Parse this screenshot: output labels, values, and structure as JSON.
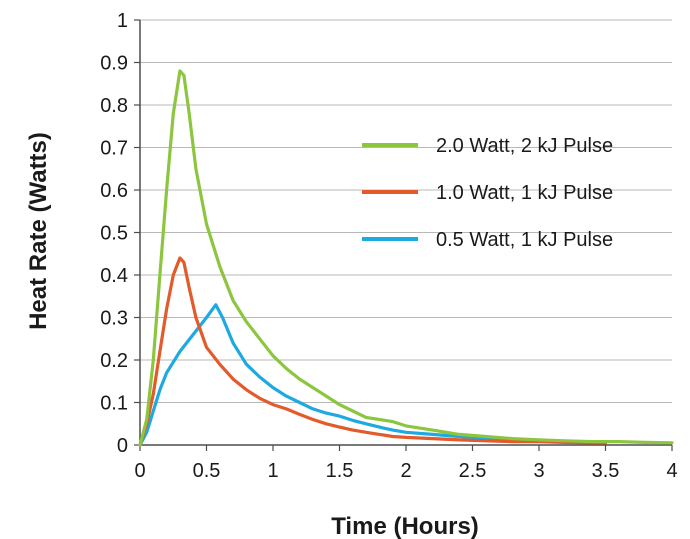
{
  "chart_data": {
    "type": "line",
    "xlabel": "Time (Hours)",
    "ylabel": "Heat Rate (Watts)",
    "xlim": [
      0,
      4
    ],
    "ylim": [
      0,
      1
    ],
    "x_ticks": [
      "0",
      "0.5",
      "1",
      "1.5",
      "2",
      "2.5",
      "3",
      "3.5",
      "4"
    ],
    "y_ticks": [
      "0",
      "0.1",
      "0.2",
      "0.3",
      "0.4",
      "0.5",
      "0.6",
      "0.7",
      "0.8",
      "0.9",
      "1"
    ],
    "grid": "horizontal",
    "legend_position": "right",
    "series": [
      {
        "name": "2.0 Watt, 2 kJ Pulse",
        "color": "#8cc63f",
        "points": [
          [
            0,
            0
          ],
          [
            0.05,
            0.06
          ],
          [
            0.1,
            0.2
          ],
          [
            0.15,
            0.4
          ],
          [
            0.2,
            0.6
          ],
          [
            0.25,
            0.78
          ],
          [
            0.3,
            0.88
          ],
          [
            0.33,
            0.87
          ],
          [
            0.37,
            0.78
          ],
          [
            0.42,
            0.65
          ],
          [
            0.5,
            0.52
          ],
          [
            0.6,
            0.42
          ],
          [
            0.7,
            0.34
          ],
          [
            0.8,
            0.29
          ],
          [
            0.9,
            0.25
          ],
          [
            1.0,
            0.21
          ],
          [
            1.1,
            0.18
          ],
          [
            1.2,
            0.155
          ],
          [
            1.3,
            0.135
          ],
          [
            1.4,
            0.115
          ],
          [
            1.5,
            0.095
          ],
          [
            1.6,
            0.08
          ],
          [
            1.7,
            0.065
          ],
          [
            1.8,
            0.06
          ],
          [
            1.9,
            0.055
          ],
          [
            2.0,
            0.045
          ],
          [
            2.2,
            0.035
          ],
          [
            2.4,
            0.025
          ],
          [
            2.6,
            0.02
          ],
          [
            2.8,
            0.015
          ],
          [
            3.0,
            0.012
          ],
          [
            3.2,
            0.01
          ],
          [
            3.4,
            0.008
          ],
          [
            3.6,
            0.008
          ],
          [
            3.8,
            0.006
          ],
          [
            4.0,
            0.005
          ]
        ]
      },
      {
        "name": "1.0 Watt, 1 kJ Pulse",
        "color": "#e35a2b",
        "points": [
          [
            0,
            0
          ],
          [
            0.05,
            0.05
          ],
          [
            0.1,
            0.12
          ],
          [
            0.15,
            0.22
          ],
          [
            0.2,
            0.32
          ],
          [
            0.25,
            0.4
          ],
          [
            0.3,
            0.44
          ],
          [
            0.33,
            0.43
          ],
          [
            0.37,
            0.37
          ],
          [
            0.42,
            0.3
          ],
          [
            0.5,
            0.23
          ],
          [
            0.6,
            0.19
          ],
          [
            0.7,
            0.155
          ],
          [
            0.8,
            0.13
          ],
          [
            0.9,
            0.11
          ],
          [
            1.0,
            0.095
          ],
          [
            1.1,
            0.085
          ],
          [
            1.2,
            0.072
          ],
          [
            1.3,
            0.06
          ],
          [
            1.4,
            0.05
          ],
          [
            1.5,
            0.042
          ],
          [
            1.6,
            0.035
          ],
          [
            1.7,
            0.03
          ],
          [
            1.8,
            0.025
          ],
          [
            1.9,
            0.02
          ],
          [
            2.0,
            0.018
          ],
          [
            2.2,
            0.015
          ],
          [
            2.4,
            0.012
          ],
          [
            2.6,
            0.01
          ],
          [
            2.8,
            0.008
          ],
          [
            3.0,
            0.008
          ],
          [
            3.2,
            0.006
          ],
          [
            3.4,
            0.005
          ],
          [
            3.5,
            0.005
          ]
        ]
      },
      {
        "name": "0.5 Watt, 1 kJ Pulse",
        "color": "#1ea9e1",
        "points": [
          [
            0,
            0
          ],
          [
            0.05,
            0.03
          ],
          [
            0.1,
            0.08
          ],
          [
            0.15,
            0.13
          ],
          [
            0.2,
            0.17
          ],
          [
            0.3,
            0.22
          ],
          [
            0.4,
            0.26
          ],
          [
            0.5,
            0.3
          ],
          [
            0.57,
            0.33
          ],
          [
            0.62,
            0.3
          ],
          [
            0.7,
            0.24
          ],
          [
            0.8,
            0.19
          ],
          [
            0.9,
            0.16
          ],
          [
            1.0,
            0.135
          ],
          [
            1.1,
            0.115
          ],
          [
            1.2,
            0.1
          ],
          [
            1.3,
            0.085
          ],
          [
            1.4,
            0.075
          ],
          [
            1.5,
            0.068
          ],
          [
            1.6,
            0.058
          ],
          [
            1.7,
            0.05
          ],
          [
            1.8,
            0.042
          ],
          [
            1.9,
            0.035
          ],
          [
            2.0,
            0.03
          ],
          [
            2.2,
            0.025
          ],
          [
            2.4,
            0.02
          ],
          [
            2.6,
            0.015
          ],
          [
            2.8,
            0.012
          ],
          [
            3.0,
            0.01
          ],
          [
            3.2,
            0.008
          ],
          [
            3.4,
            0.005
          ],
          [
            3.5,
            0.005
          ]
        ]
      }
    ]
  }
}
